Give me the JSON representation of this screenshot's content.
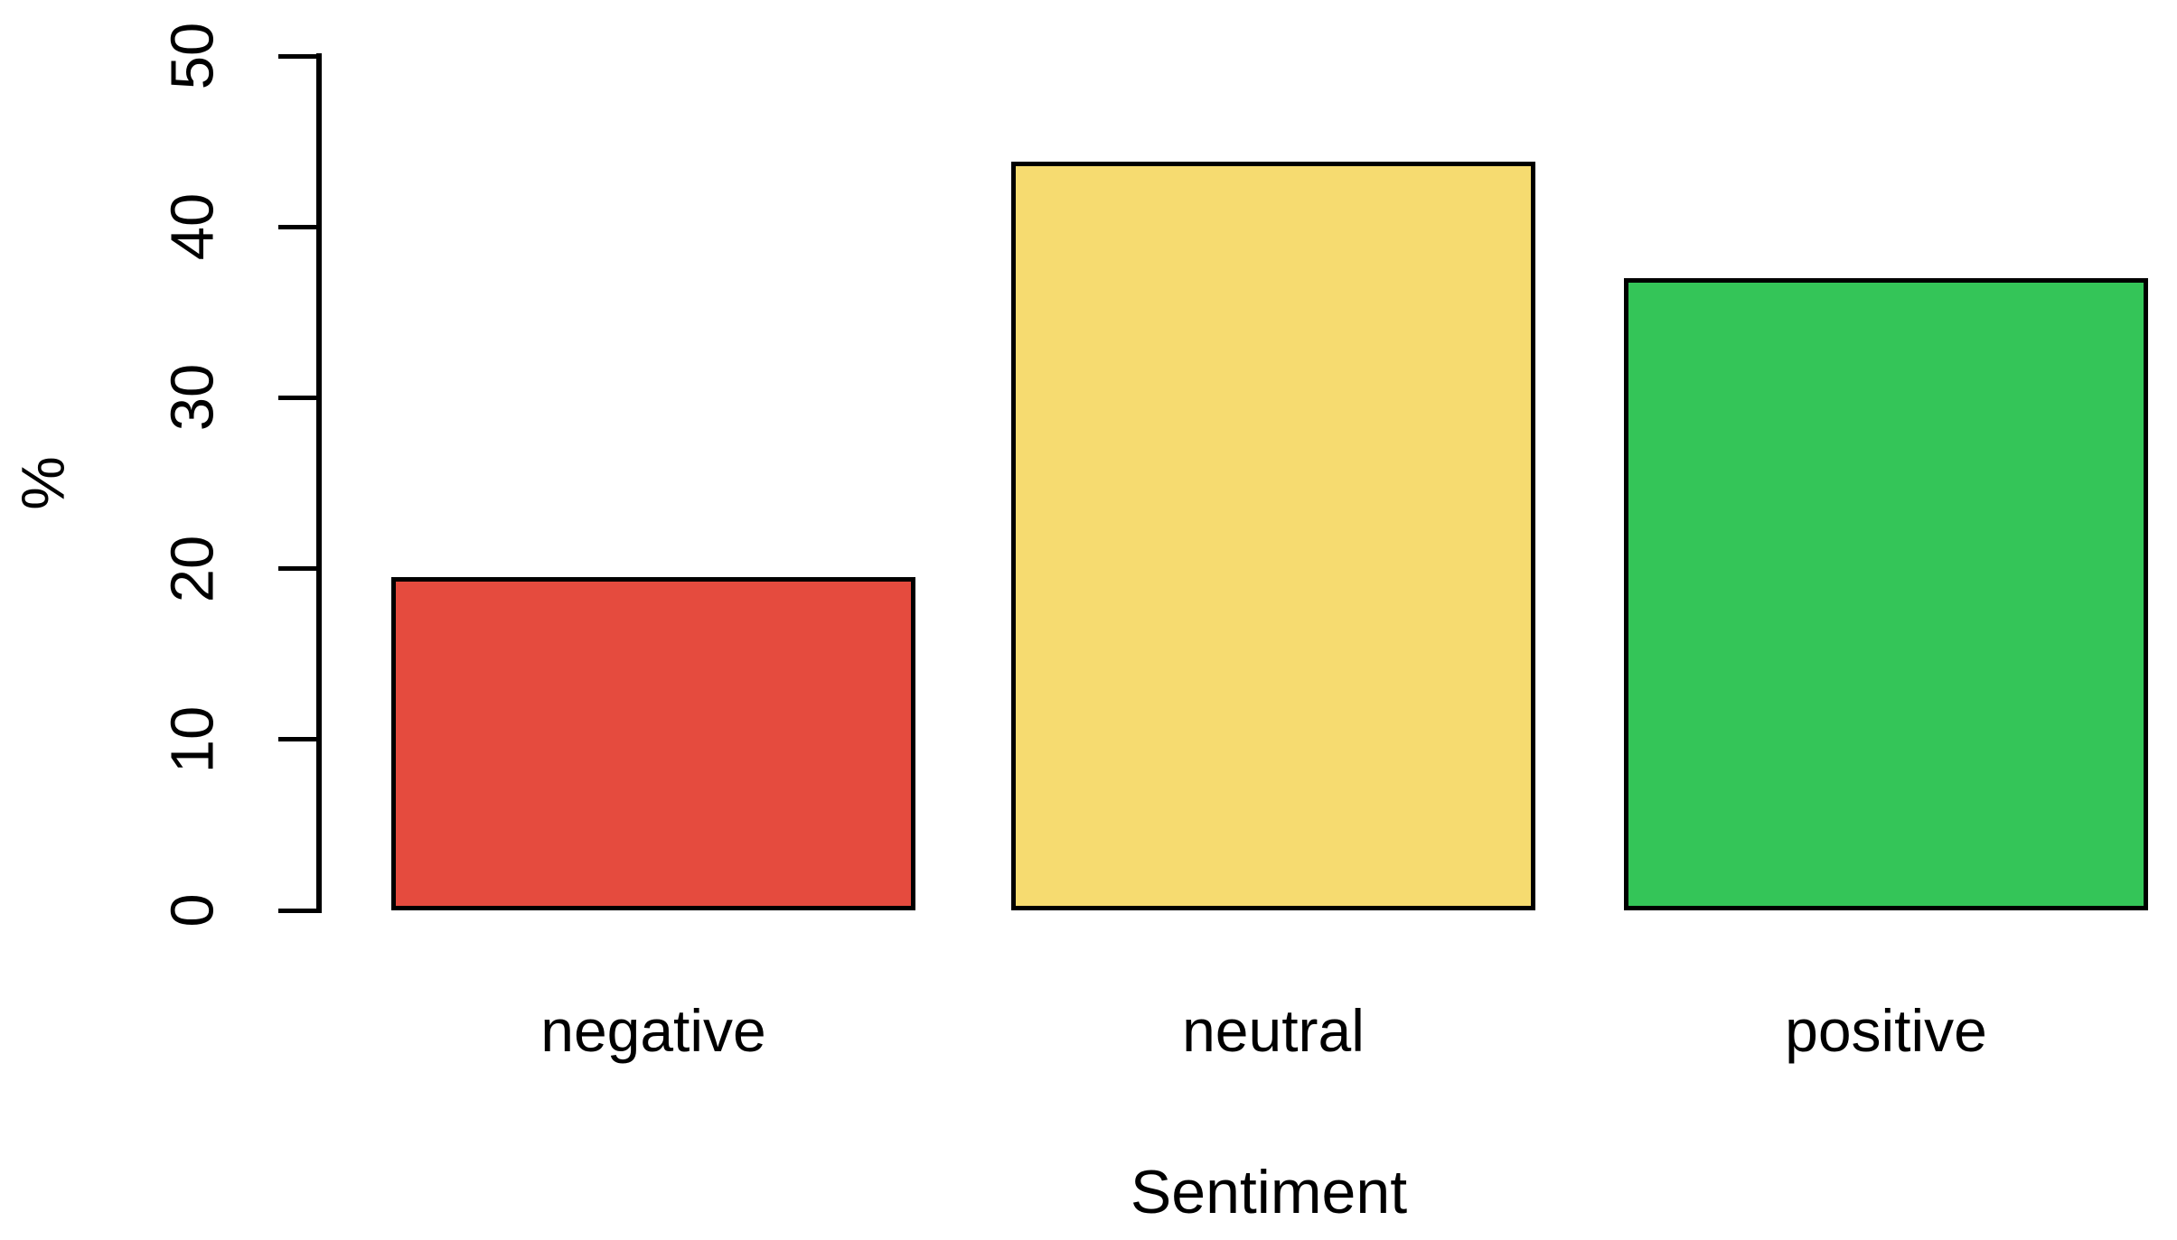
{
  "chart_data": {
    "type": "bar",
    "title": "",
    "categories": [
      "negative",
      "neutral",
      "positive"
    ],
    "values": [
      19.5,
      43.8,
      37.0
    ],
    "bar_colors": [
      "#E54B3E",
      "#F6DB70",
      "#34C558"
    ],
    "bar_border_color": "#000000",
    "xlabel": "Sentiment",
    "ylabel": "%",
    "ylim": [
      0,
      50
    ],
    "yticks": [
      0,
      10,
      20,
      30,
      40,
      50
    ],
    "grid": false,
    "legend": false,
    "background_color": "#FFFFFF",
    "axis_color": "#000000"
  }
}
